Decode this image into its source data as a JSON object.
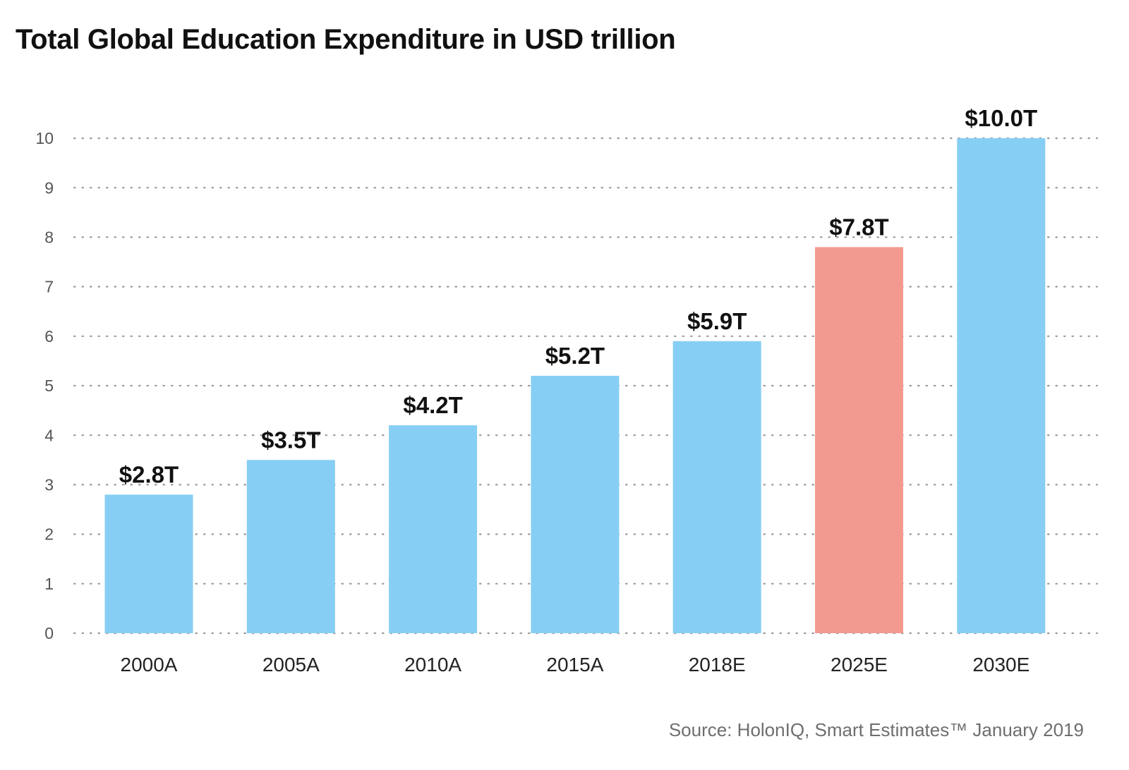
{
  "chart_data": {
    "type": "bar",
    "title": "Total Global Education Expenditure in USD trillion",
    "categories": [
      "2000A",
      "2005A",
      "2010A",
      "2015A",
      "2018E",
      "2025E",
      "2030E"
    ],
    "values": [
      2.8,
      3.5,
      4.2,
      5.2,
      5.9,
      7.8,
      10.0
    ],
    "data_labels": [
      "$2.8T",
      "$3.5T",
      "$4.2T",
      "$5.2T",
      "$5.9T",
      "$7.8T",
      "$10.0T"
    ],
    "bar_colors": [
      "#87cef4",
      "#87cef4",
      "#87cef4",
      "#87cef4",
      "#87cef4",
      "#f29a90",
      "#87cef4"
    ],
    "y_ticks": [
      "0",
      "1",
      "2",
      "3",
      "4",
      "5",
      "6",
      "7",
      "8",
      "9",
      "10"
    ],
    "ylim": [
      0,
      10
    ],
    "grid": "dotted horizontal",
    "xlabel": "",
    "ylabel": ""
  },
  "source": "Source: HolonIQ, Smart Estimates™ January 2019"
}
